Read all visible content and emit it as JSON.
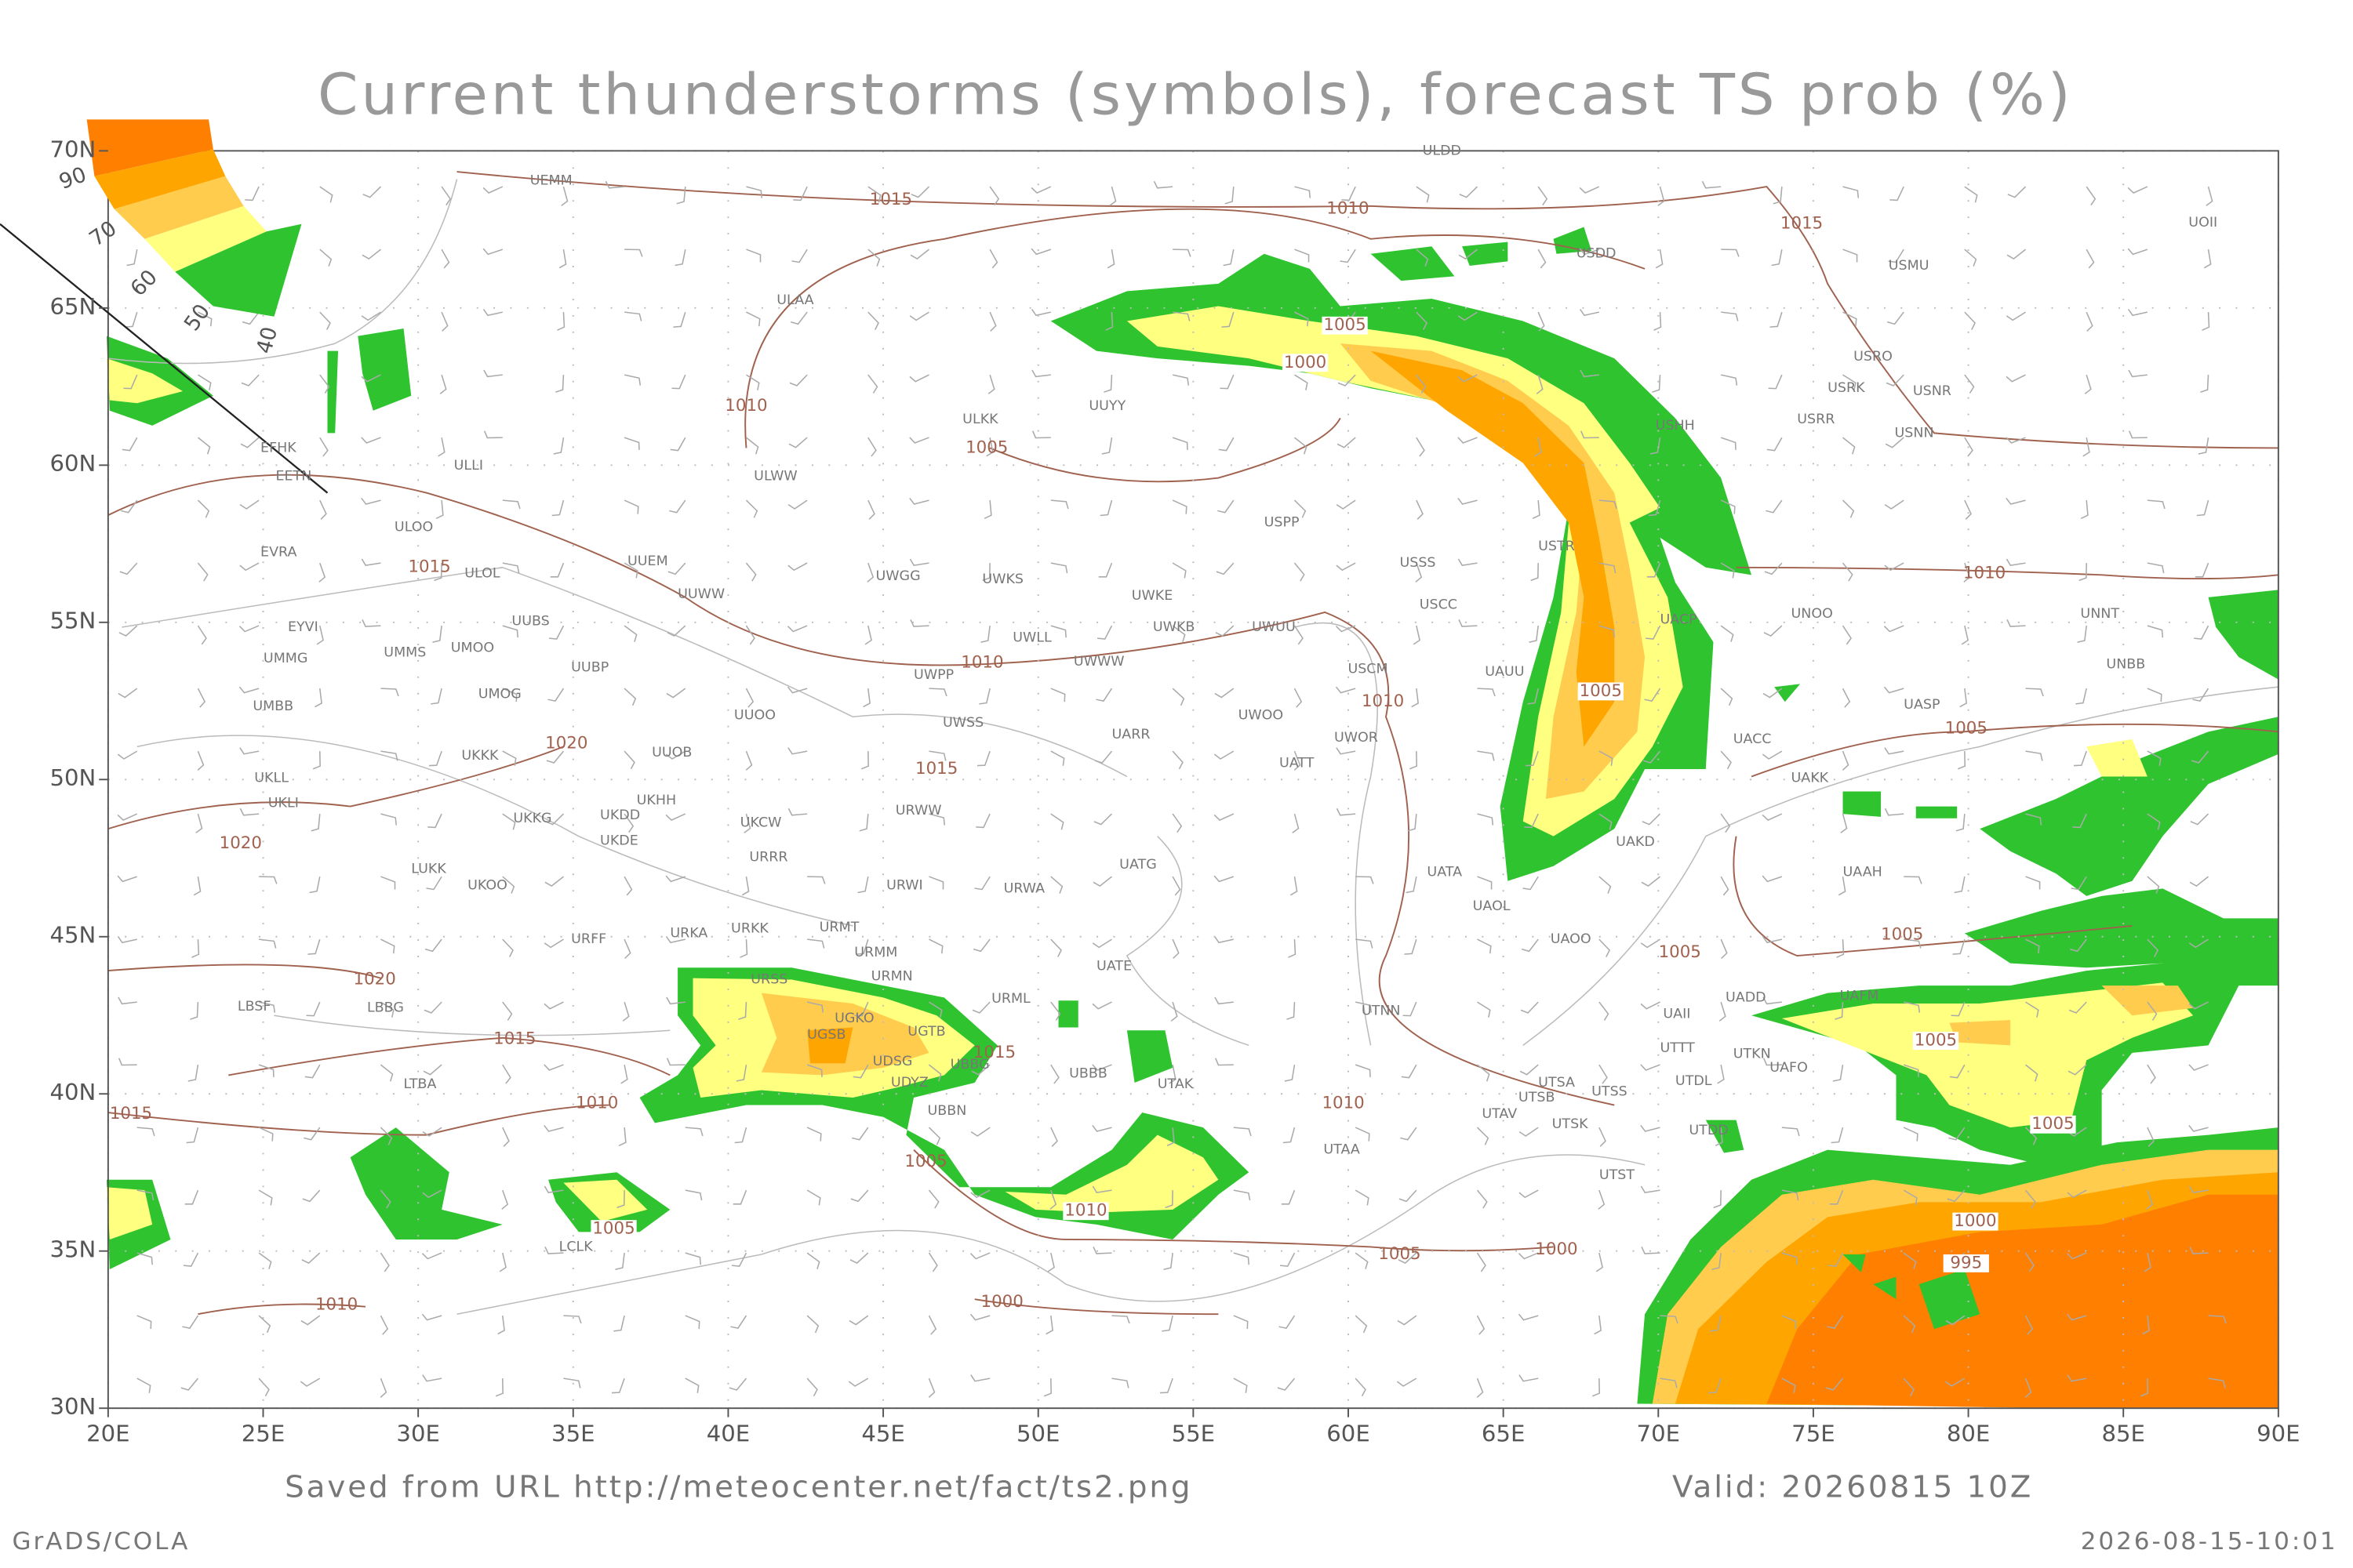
{
  "title": "Current thunderstorms (symbols), forecast TS prob (%)",
  "lat_ticks": [
    {
      "value": 70,
      "label": "70N"
    },
    {
      "value": 65,
      "label": "65N"
    },
    {
      "value": 60,
      "label": "60N"
    },
    {
      "value": 55,
      "label": "55N"
    },
    {
      "value": 50,
      "label": "50N"
    },
    {
      "value": 45,
      "label": "45N"
    },
    {
      "value": 40,
      "label": "40N"
    },
    {
      "value": 35,
      "label": "35N"
    },
    {
      "value": 30,
      "label": "30N"
    }
  ],
  "lon_ticks": [
    {
      "value": 20,
      "label": "20E"
    },
    {
      "value": 25,
      "label": "25E"
    },
    {
      "value": 30,
      "label": "30E"
    },
    {
      "value": 35,
      "label": "35E"
    },
    {
      "value": 40,
      "label": "40E"
    },
    {
      "value": 45,
      "label": "45E"
    },
    {
      "value": 50,
      "label": "50E"
    },
    {
      "value": 55,
      "label": "55E"
    },
    {
      "value": 60,
      "label": "60E"
    },
    {
      "value": 65,
      "label": "65E"
    },
    {
      "value": 70,
      "label": "70E"
    },
    {
      "value": 75,
      "label": "75E"
    },
    {
      "value": 80,
      "label": "80E"
    },
    {
      "value": 85,
      "label": "85E"
    },
    {
      "value": 90,
      "label": "90E"
    }
  ],
  "lon_range": [
    20,
    90
  ],
  "lat_range": [
    30,
    70
  ],
  "legend": [
    90,
    70,
    60,
    50,
    40
  ],
  "footer": {
    "source": "Saved from URL http://meteocenter.net/fact/ts2.png",
    "valid": "Valid: 20260815 10Z",
    "software": "GrADS/COLA",
    "timestamp": "2026-08-15-10:01"
  },
  "stations": [
    "ULDD",
    "UEMM",
    "USDD",
    "USMU",
    "UOII",
    "ULAA",
    "UUYY",
    "ULKK",
    "USRO",
    "USRK",
    "USNR",
    "USRR",
    "USNN",
    "USHH",
    "EFHK",
    "EETN",
    "ULLI",
    "ULWW",
    "USPP",
    "ULOO",
    "EVRA",
    "UUEM",
    "ULOL",
    "UUWW",
    "USTR",
    "USSS",
    "UWGG",
    "UWKS",
    "UWKE",
    "USCC",
    "UUBS",
    "EYVI",
    "UWKB",
    "UWUU",
    "UACP",
    "UNOO",
    "UNNT",
    "UWLL",
    "UMMG",
    "UMMS",
    "UMOO",
    "UUBP",
    "UWWW",
    "USCM",
    "UAUU",
    "UACC",
    "UNBB",
    "UWPP",
    "UMOG",
    "UMBB",
    "UUOO",
    "UWOO",
    "UASP",
    "UWSS",
    "UARR",
    "UWOR",
    "UUOB",
    "UKKK",
    "UATT",
    "UKLL",
    "UAKK",
    "UKHH",
    "UKLI",
    "UKKG",
    "UKDD",
    "UKCW",
    "URWW",
    "UKDE",
    "URRR",
    "UAKD",
    "UATG",
    "UAAH",
    "LUKK",
    "UKOO",
    "URWI",
    "URWA",
    "UATA",
    "UAOL",
    "URFF",
    "URKA",
    "URKK",
    "URMT",
    "UATE",
    "UAOO",
    "URMM",
    "URMN",
    "URSS",
    "UADD",
    "UAFM",
    "LBSF",
    "LBBG",
    "URML",
    "UGKO",
    "UAII",
    "UTNN",
    "UGSB",
    "UGTB",
    "UBBG",
    "UTTT",
    "UTKN",
    "UAFO",
    "UBBB",
    "UTDL",
    "UDSG",
    "UDYZ",
    "UTAK",
    "LTBA",
    "UTSA",
    "UTSS",
    "UTSB",
    "UTAV",
    "UBBN",
    "UTSK",
    "UTDD",
    "UTAA",
    "UTST",
    "LCLK"
  ],
  "isobar_labels": [
    "1015",
    "1010",
    "1015",
    "1010",
    "1005",
    "1015",
    "1010",
    "1010",
    "1020",
    "1015",
    "1020",
    "1005",
    "1010",
    "1020",
    "1015",
    "1015",
    "1010",
    "1005",
    "1005",
    "1015",
    "1005",
    "1010",
    "1005",
    "1010",
    "1005",
    "1000",
    "1000",
    "1010",
    "1005",
    "1000",
    "1005",
    "1005",
    "1005",
    "1000",
    "995"
  ]
}
